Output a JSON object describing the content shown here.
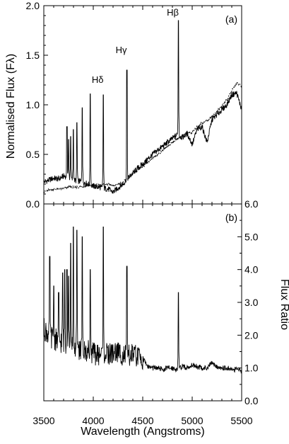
{
  "chart_data": [
    {
      "type": "line",
      "panel_label": "(a)",
      "xlabel": "",
      "ylabel": "Normalised Flux (Fλ)",
      "xlim": [
        3500,
        5500
      ],
      "ylim": [
        0,
        2.0
      ],
      "x_ticks": [],
      "y_ticks": [
        "0.0",
        "0.5",
        "1.0",
        "1.5",
        "2.0"
      ],
      "y_tick_values": [
        0,
        0.5,
        1.0,
        1.5,
        2.0
      ],
      "y_axis_side": "left",
      "grid": false,
      "annotations": [
        {
          "text": "Hδ",
          "x": 4101,
          "y": 1.22
        },
        {
          "text": "Hγ",
          "x": 4340,
          "y": 1.52
        },
        {
          "text": "Hβ",
          "x": 4861,
          "y": 1.9
        }
      ],
      "emission_lines": [
        {
          "x": 3734,
          "peak": 0.78
        },
        {
          "x": 3750,
          "peak": 0.65
        },
        {
          "x": 3771,
          "peak": 0.68
        },
        {
          "x": 3798,
          "peak": 0.75
        },
        {
          "x": 3835,
          "peak": 0.82
        },
        {
          "x": 3889,
          "peak": 0.97
        },
        {
          "x": 3970,
          "peak": 1.11
        },
        {
          "x": 4101,
          "peak": 1.1
        },
        {
          "x": 4340,
          "peak": 1.35
        },
        {
          "x": 4861,
          "peak": 1.85
        }
      ],
      "series": [
        {
          "style": "solid",
          "x": [
            3500,
            3550,
            3600,
            3650,
            3700,
            3750,
            3800,
            3850,
            3900,
            3950,
            4000,
            4050,
            4100,
            4150,
            4200,
            4250,
            4300,
            4350,
            4400,
            4450,
            4500,
            4550,
            4600,
            4650,
            4700,
            4750,
            4800,
            4850,
            4900,
            4950,
            5000,
            5050,
            5100,
            5150,
            5200,
            5250,
            5300,
            5350,
            5400,
            5450,
            5500
          ],
          "y": [
            0.22,
            0.24,
            0.26,
            0.25,
            0.28,
            0.27,
            0.24,
            0.23,
            0.22,
            0.2,
            0.18,
            0.17,
            0.16,
            0.15,
            0.12,
            0.16,
            0.2,
            0.26,
            0.31,
            0.36,
            0.4,
            0.45,
            0.5,
            0.54,
            0.58,
            0.62,
            0.66,
            0.7,
            0.67,
            0.71,
            0.6,
            0.75,
            0.78,
            0.62,
            0.85,
            0.9,
            0.95,
            1.0,
            1.1,
            1.12,
            0.95
          ]
        },
        {
          "style": "dotted",
          "x": [
            3500,
            3550,
            3600,
            3650,
            3700,
            3750,
            3800,
            3850,
            3900,
            3950,
            4000,
            4050,
            4100,
            4150,
            4200,
            4250,
            4300,
            4350,
            4400,
            4450,
            4500,
            4550,
            4600,
            4650,
            4700,
            4750,
            4800,
            4850,
            4900,
            4950,
            5000,
            5050,
            5100,
            5150,
            5200,
            5250,
            5300,
            5350,
            5400,
            5450,
            5500
          ],
          "y": [
            0.12,
            0.14,
            0.15,
            0.15,
            0.16,
            0.17,
            0.17,
            0.17,
            0.18,
            0.18,
            0.18,
            0.19,
            0.19,
            0.2,
            0.18,
            0.2,
            0.22,
            0.26,
            0.3,
            0.34,
            0.38,
            0.42,
            0.46,
            0.5,
            0.54,
            0.58,
            0.62,
            0.66,
            0.68,
            0.72,
            0.72,
            0.78,
            0.82,
            0.84,
            0.88,
            0.93,
            0.99,
            1.05,
            1.14,
            1.22,
            1.18
          ]
        }
      ]
    },
    {
      "type": "line",
      "panel_label": "(b)",
      "xlabel": "Wavelength (Angstroms)",
      "ylabel": "Flux Ratio",
      "xlim": [
        3500,
        5500
      ],
      "ylim": [
        0,
        6.0
      ],
      "x_ticks": [
        "3500",
        "4000",
        "4500",
        "5000",
        "5500"
      ],
      "x_tick_values": [
        3500,
        4000,
        4500,
        5000,
        5500
      ],
      "y_ticks": [
        "0.0",
        "1.0",
        "2.0",
        "3.0",
        "4.0",
        "5.0",
        "6.0"
      ],
      "y_tick_values": [
        0,
        1,
        2,
        3,
        4,
        5,
        6
      ],
      "y_axis_side": "right",
      "grid": false,
      "emission_lines": [
        {
          "x": 3560,
          "peak": 4.4
        },
        {
          "x": 3600,
          "peak": 3.5
        },
        {
          "x": 3650,
          "peak": 3.3
        },
        {
          "x": 3690,
          "peak": 3.9
        },
        {
          "x": 3712,
          "peak": 4.0
        },
        {
          "x": 3734,
          "peak": 4.0
        },
        {
          "x": 3750,
          "peak": 3.8
        },
        {
          "x": 3771,
          "peak": 4.8
        },
        {
          "x": 3798,
          "peak": 5.3
        },
        {
          "x": 3835,
          "peak": 5.2
        },
        {
          "x": 3889,
          "peak": 5.0
        },
        {
          "x": 3970,
          "peak": 4.0
        },
        {
          "x": 4101,
          "peak": 5.3
        },
        {
          "x": 4340,
          "peak": 4.1
        },
        {
          "x": 4861,
          "peak": 3.3
        }
      ],
      "series": [
        {
          "style": "solid",
          "x": [
            3500,
            3550,
            3600,
            3650,
            3700,
            3750,
            3800,
            3850,
            3900,
            3950,
            4000,
            4050,
            4100,
            4150,
            4200,
            4250,
            4300,
            4350,
            4400,
            4450,
            4500,
            4550,
            4600,
            4650,
            4700,
            4750,
            4800,
            4850,
            4900,
            4950,
            5000,
            5050,
            5100,
            5150,
            5200,
            5250,
            5300,
            5350,
            5400,
            5450,
            5500
          ],
          "y": [
            2.2,
            2.0,
            1.9,
            1.8,
            1.8,
            1.7,
            1.6,
            1.6,
            1.5,
            1.5,
            1.45,
            1.4,
            1.45,
            1.4,
            1.45,
            1.5,
            1.4,
            1.35,
            1.4,
            1.35,
            1.3,
            1.05,
            1.0,
            1.0,
            0.95,
            1.0,
            1.0,
            0.95,
            1.05,
            1.0,
            1.1,
            1.05,
            1.0,
            1.0,
            1.15,
            1.05,
            1.0,
            1.0,
            0.95,
            0.95,
            0.9
          ]
        }
      ]
    }
  ]
}
